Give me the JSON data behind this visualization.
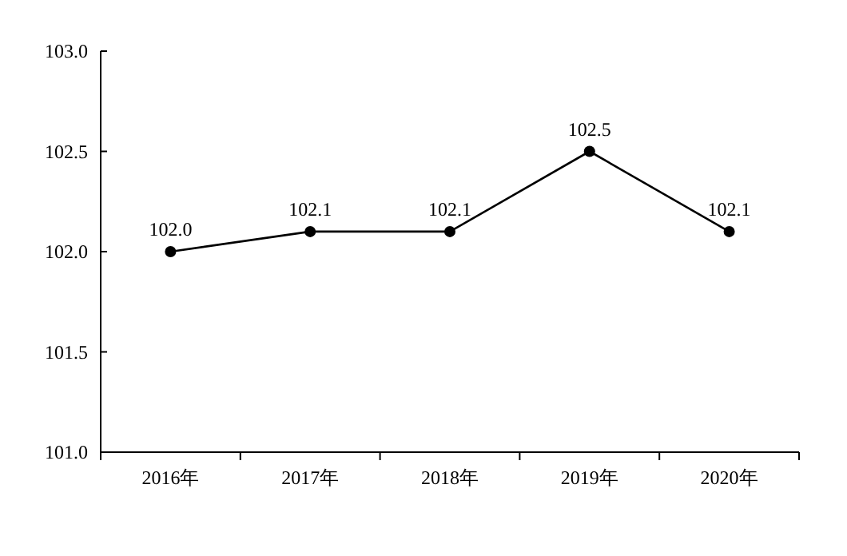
{
  "chart_data": {
    "type": "line",
    "categories": [
      "2016年",
      "2017年",
      "2018年",
      "2019年",
      "2020年"
    ],
    "values": [
      102.0,
      102.1,
      102.1,
      102.5,
      102.1
    ],
    "value_labels": [
      "102.0",
      "102.1",
      "102.1",
      "102.5",
      "102.1"
    ],
    "color": "#000000",
    "marker": "circle",
    "line_style": "solid",
    "ylim": [
      101,
      103
    ],
    "yticks": [
      {
        "value": 101,
        "label": "101.0"
      },
      {
        "value": 101.5,
        "label": "101.5"
      },
      {
        "value": 102,
        "label": "102.0"
      },
      {
        "value": 102.5,
        "label": "102.5"
      },
      {
        "value": 103,
        "label": "103.0"
      }
    ]
  }
}
